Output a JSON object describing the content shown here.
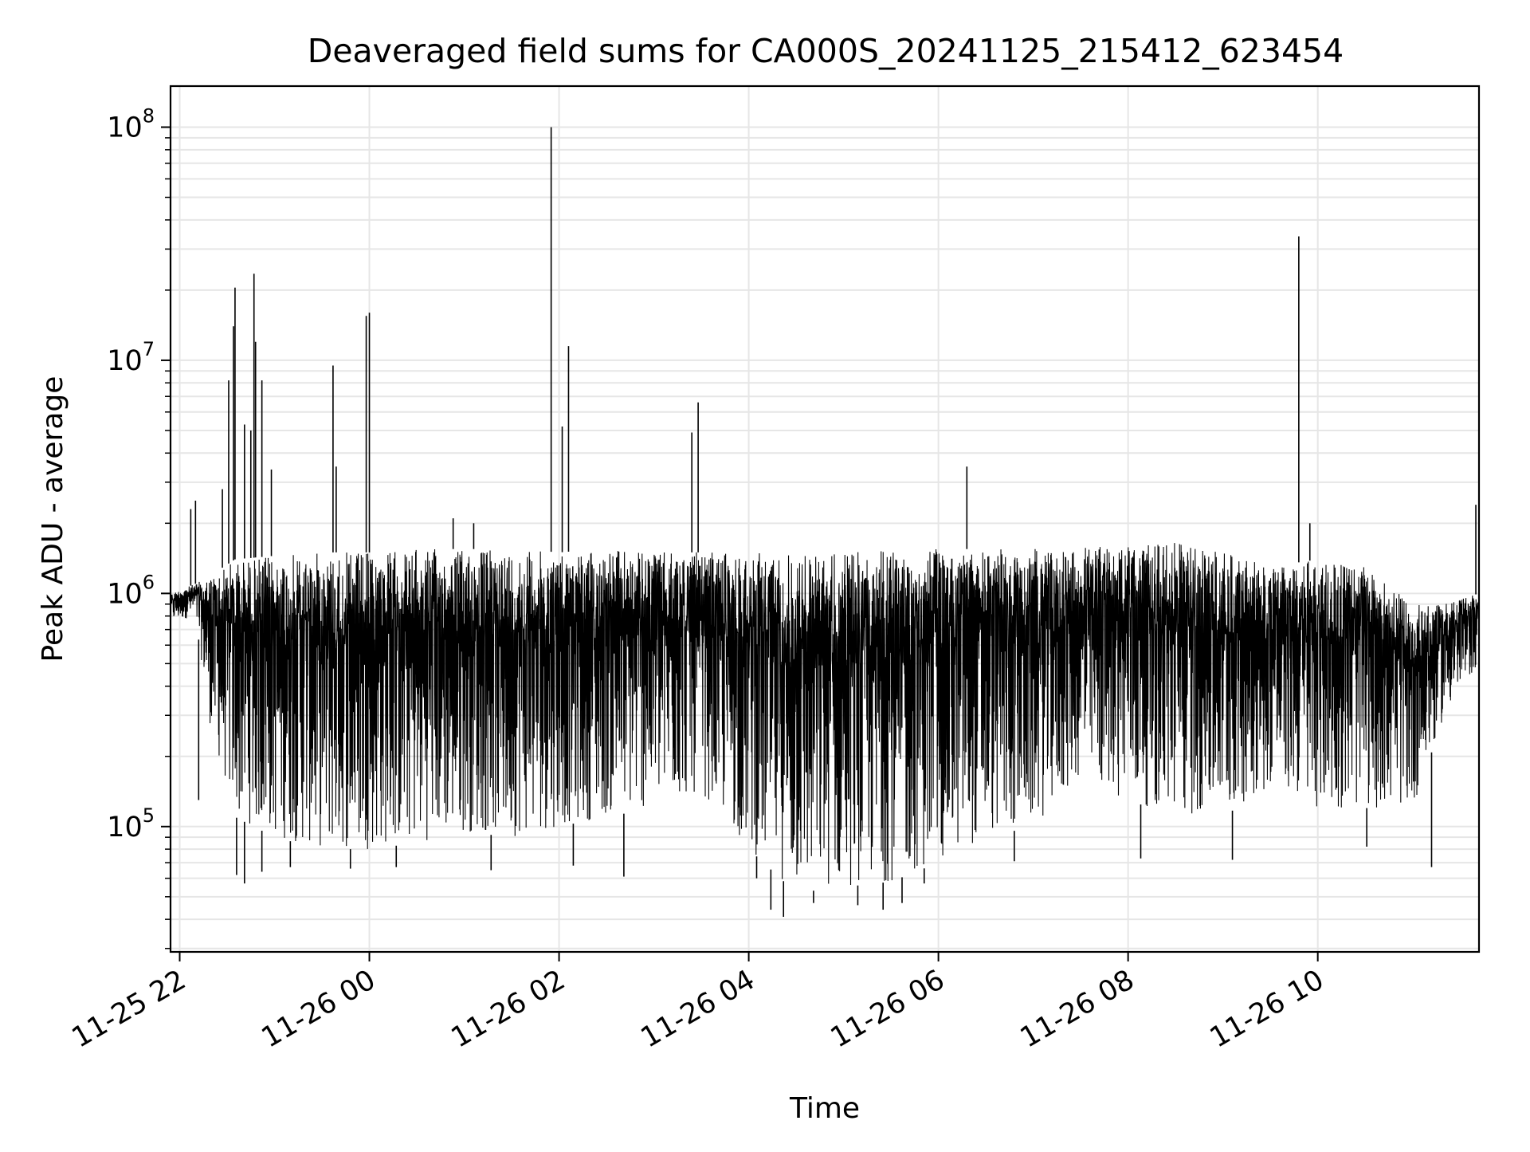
{
  "chart_data": {
    "type": "line",
    "title": "Deaveraged field sums for CA000S_20241125_215412_623454",
    "xlabel": "Time",
    "ylabel": "Peak ADU - average",
    "xaxis": {
      "type": "time",
      "range": [
        "2024-11-25T21:54:12",
        "2024-11-26T11:42:00"
      ],
      "ticks": [
        {
          "value": "2024-11-25T22:00:00",
          "label": "11-25 22"
        },
        {
          "value": "2024-11-26T00:00:00",
          "label": "11-26 00"
        },
        {
          "value": "2024-11-26T02:00:00",
          "label": "11-26 02"
        },
        {
          "value": "2024-11-26T04:00:00",
          "label": "11-26 04"
        },
        {
          "value": "2024-11-26T06:00:00",
          "label": "11-26 06"
        },
        {
          "value": "2024-11-26T08:00:00",
          "label": "11-26 08"
        },
        {
          "value": "2024-11-26T10:00:00",
          "label": "11-26 10"
        }
      ]
    },
    "yaxis": {
      "scale": "log",
      "range": [
        29000,
        150000000
      ],
      "ticks": [
        {
          "value": 100000,
          "base": "10",
          "exp": "5"
        },
        {
          "value": 1000000,
          "base": "10",
          "exp": "6"
        },
        {
          "value": 10000000,
          "base": "10",
          "exp": "7"
        },
        {
          "value": 100000000,
          "base": "10",
          "exp": "8"
        }
      ]
    },
    "grid": true,
    "legend": "none",
    "line_color": "#000000",
    "grid_color": "#e6e6e6",
    "series": [
      {
        "description_note": "",
        "envelope": [
          {
            "t": "2024-11-25T21:54:12",
            "low": 750000,
            "high": 1000000
          },
          {
            "t": "2024-11-25T22:10:00",
            "low": 800000,
            "high": 1100000
          },
          {
            "t": "2024-11-25T22:20:00",
            "low": 250000,
            "high": 1200000
          },
          {
            "t": "2024-11-25T22:35:00",
            "low": 110000,
            "high": 1400000
          },
          {
            "t": "2024-11-25T23:00:00",
            "low": 90000,
            "high": 1450000
          },
          {
            "t": "2024-11-25T23:30:00",
            "low": 80000,
            "high": 1500000
          },
          {
            "t": "2024-11-26T00:00:00",
            "low": 80000,
            "high": 1500000
          },
          {
            "t": "2024-11-26T00:30:00",
            "low": 85000,
            "high": 1550000
          },
          {
            "t": "2024-11-26T01:00:00",
            "low": 95000,
            "high": 1550000
          },
          {
            "t": "2024-11-26T01:30:00",
            "low": 90000,
            "high": 1550000
          },
          {
            "t": "2024-11-26T02:00:00",
            "low": 100000,
            "high": 1500000
          },
          {
            "t": "2024-11-26T02:30:00",
            "low": 110000,
            "high": 1550000
          },
          {
            "t": "2024-11-26T03:00:00",
            "low": 120000,
            "high": 1500000
          },
          {
            "t": "2024-11-26T03:30:00",
            "low": 140000,
            "high": 1500000
          },
          {
            "t": "2024-11-26T04:00:00",
            "low": 80000,
            "high": 1500000
          },
          {
            "t": "2024-11-26T04:30:00",
            "low": 52000,
            "high": 1500000
          },
          {
            "t": "2024-11-26T05:00:00",
            "low": 55000,
            "high": 1500000
          },
          {
            "t": "2024-11-26T05:30:00",
            "low": 58000,
            "high": 1550000
          },
          {
            "t": "2024-11-26T06:00:00",
            "low": 70000,
            "high": 1550000
          },
          {
            "t": "2024-11-26T06:30:00",
            "low": 90000,
            "high": 1550000
          },
          {
            "t": "2024-11-26T07:00:00",
            "low": 100000,
            "high": 1550000
          },
          {
            "t": "2024-11-26T07:30:00",
            "low": 160000,
            "high": 1600000
          },
          {
            "t": "2024-11-26T08:00:00",
            "low": 130000,
            "high": 1600000
          },
          {
            "t": "2024-11-26T08:30:00",
            "low": 110000,
            "high": 1650000
          },
          {
            "t": "2024-11-26T09:00:00",
            "low": 110000,
            "high": 1500000
          },
          {
            "t": "2024-11-26T09:30:00",
            "low": 150000,
            "high": 1300000
          },
          {
            "t": "2024-11-26T10:00:00",
            "low": 120000,
            "high": 1400000
          },
          {
            "t": "2024-11-26T10:30:00",
            "low": 120000,
            "high": 1300000
          },
          {
            "t": "2024-11-26T11:00:00",
            "low": 120000,
            "high": 900000
          },
          {
            "t": "2024-11-26T11:20:00",
            "low": 300000,
            "high": 900000
          },
          {
            "t": "2024-11-26T11:42:00",
            "low": 500000,
            "high": 1000000
          }
        ],
        "spikes": [
          {
            "t": "2024-11-25T22:07:00",
            "value": 2300000
          },
          {
            "t": "2024-11-25T22:10:00",
            "value": 2500000
          },
          {
            "t": "2024-11-25T22:27:00",
            "value": 2800000
          },
          {
            "t": "2024-11-25T22:31:00",
            "value": 8200000
          },
          {
            "t": "2024-11-25T22:34:00",
            "value": 14000000
          },
          {
            "t": "2024-11-25T22:35:00",
            "value": 20500000
          },
          {
            "t": "2024-11-25T22:41:00",
            "value": 5300000
          },
          {
            "t": "2024-11-25T22:45:00",
            "value": 5000000
          },
          {
            "t": "2024-11-25T22:47:00",
            "value": 23500000
          },
          {
            "t": "2024-11-25T22:48:00",
            "value": 12000000
          },
          {
            "t": "2024-11-25T22:52:00",
            "value": 8200000
          },
          {
            "t": "2024-11-25T22:58:00",
            "value": 3400000
          },
          {
            "t": "2024-11-25T23:37:00",
            "value": 9500000
          },
          {
            "t": "2024-11-25T23:39:00",
            "value": 3500000
          },
          {
            "t": "2024-11-25T23:58:00",
            "value": 15500000
          },
          {
            "t": "2024-11-26T00:00:00",
            "value": 16000000
          },
          {
            "t": "2024-11-26T00:53:00",
            "value": 2100000
          },
          {
            "t": "2024-11-26T01:06:00",
            "value": 2000000
          },
          {
            "t": "2024-11-26T01:55:00",
            "value": 100000000
          },
          {
            "t": "2024-11-26T02:02:00",
            "value": 5200000
          },
          {
            "t": "2024-11-26T02:06:00",
            "value": 11500000
          },
          {
            "t": "2024-11-26T03:24:00",
            "value": 4900000
          },
          {
            "t": "2024-11-26T03:28:00",
            "value": 6600000
          },
          {
            "t": "2024-11-26T06:18:00",
            "value": 3500000
          },
          {
            "t": "2024-11-26T09:48:00",
            "value": 34000000
          },
          {
            "t": "2024-11-26T09:55:00",
            "value": 2000000
          },
          {
            "t": "2024-11-26T11:40:00",
            "value": 2400000
          }
        ],
        "dips": [
          {
            "t": "2024-11-25T22:12:00",
            "value": 130000
          },
          {
            "t": "2024-11-25T22:36:00",
            "value": 62000
          },
          {
            "t": "2024-11-25T22:41:00",
            "value": 57000
          },
          {
            "t": "2024-11-25T22:52:00",
            "value": 64000
          },
          {
            "t": "2024-11-25T23:10:00",
            "value": 67000
          },
          {
            "t": "2024-11-25T23:48:00",
            "value": 66000
          },
          {
            "t": "2024-11-26T00:17:00",
            "value": 67000
          },
          {
            "t": "2024-11-26T01:17:00",
            "value": 65000
          },
          {
            "t": "2024-11-26T02:09:00",
            "value": 68000
          },
          {
            "t": "2024-11-26T02:41:00",
            "value": 61000
          },
          {
            "t": "2024-11-26T04:05:00",
            "value": 60000
          },
          {
            "t": "2024-11-26T04:14:00",
            "value": 44000
          },
          {
            "t": "2024-11-26T04:22:00",
            "value": 41000
          },
          {
            "t": "2024-11-26T04:41:00",
            "value": 47000
          },
          {
            "t": "2024-11-26T05:09:00",
            "value": 46000
          },
          {
            "t": "2024-11-26T05:25:00",
            "value": 44000
          },
          {
            "t": "2024-11-26T05:37:00",
            "value": 47000
          },
          {
            "t": "2024-11-26T05:51:00",
            "value": 57000
          },
          {
            "t": "2024-11-26T06:48:00",
            "value": 71000
          },
          {
            "t": "2024-11-26T08:08:00",
            "value": 73000
          },
          {
            "t": "2024-11-26T09:06:00",
            "value": 72000
          },
          {
            "t": "2024-11-26T10:31:00",
            "value": 82000
          },
          {
            "t": "2024-11-26T11:12:00",
            "value": 67000
          }
        ]
      }
    ]
  }
}
